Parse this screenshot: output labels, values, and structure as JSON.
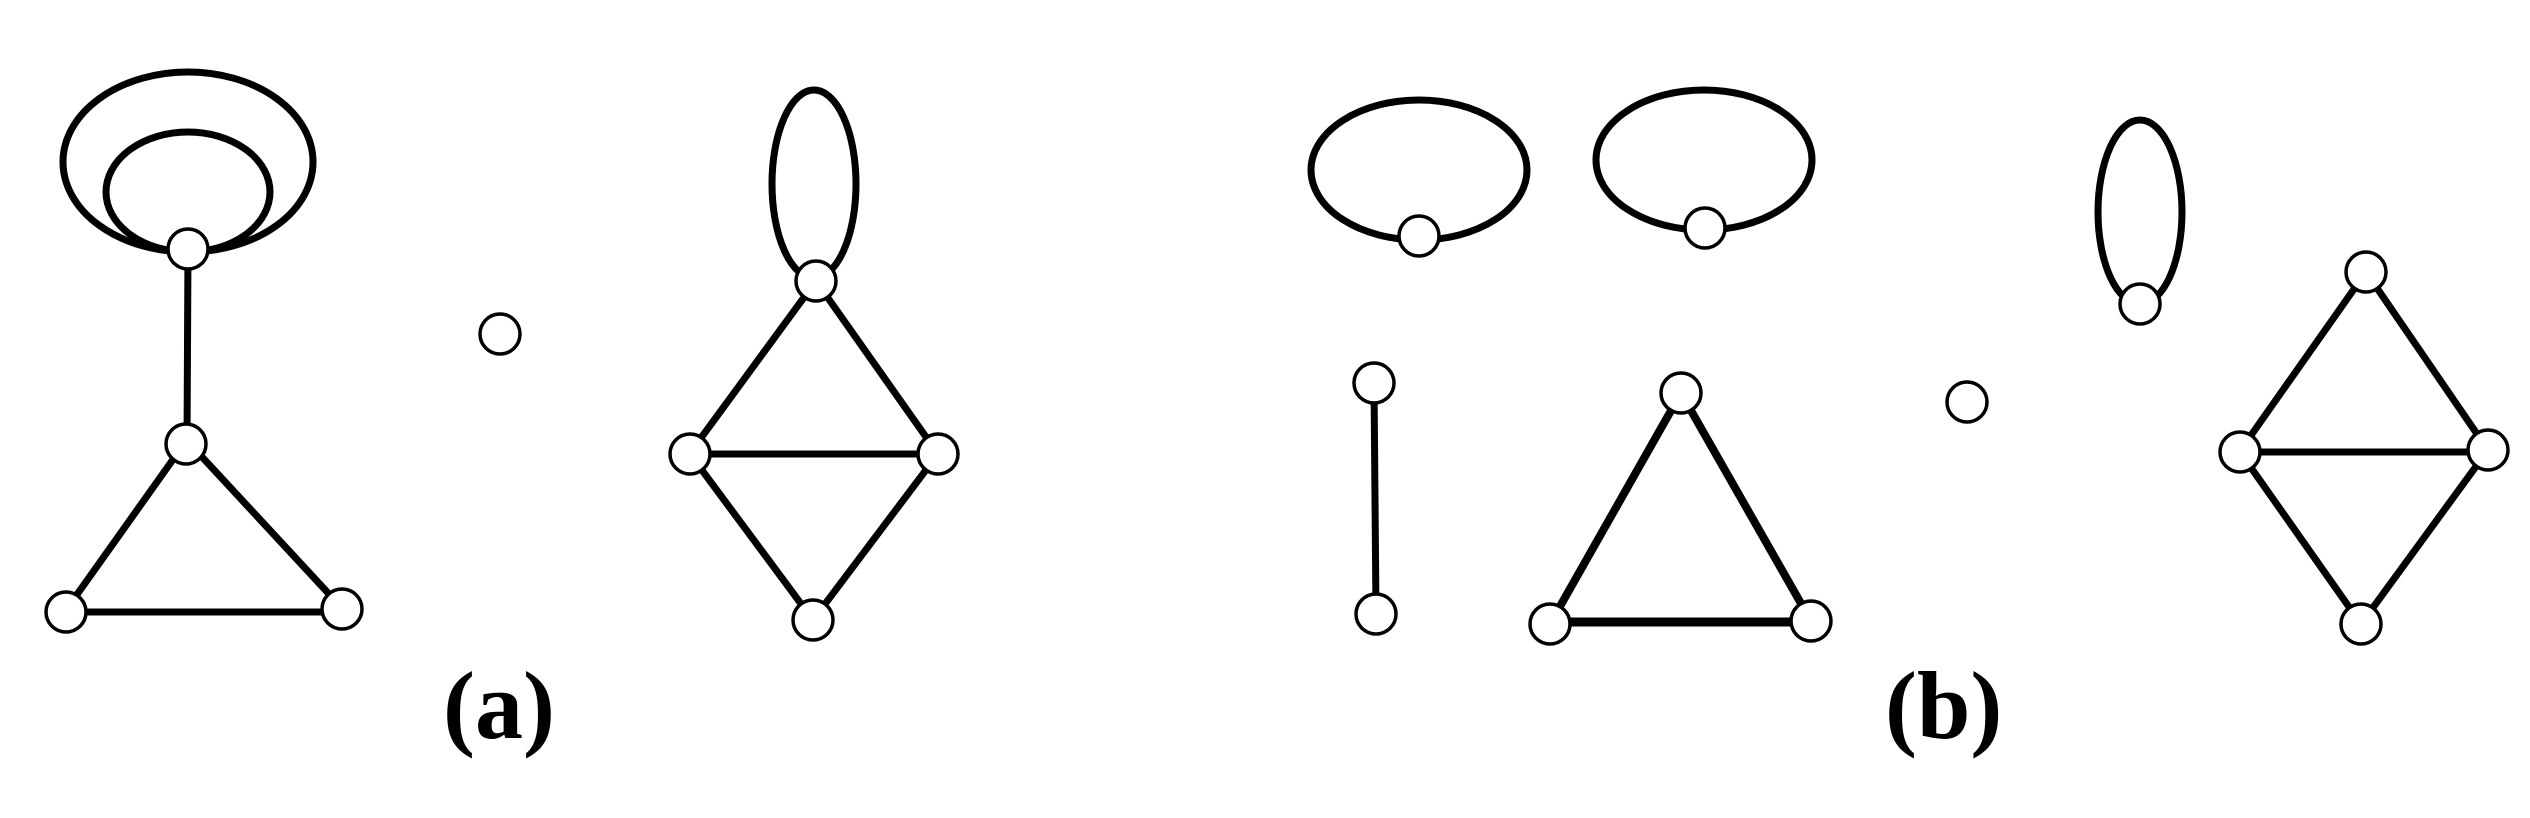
{
  "figure": {
    "panels": [
      {
        "id": "a",
        "label": "(a)",
        "components": [
          {
            "name": "triangle-with-tail-and-double-loop",
            "vertices": [
              "v1",
              "v2",
              "v3",
              "v4"
            ],
            "edges": [
              [
                "v1",
                "v2"
              ],
              [
                "v2",
                "v3"
              ],
              [
                "v2",
                "v4"
              ],
              [
                "v3",
                "v4"
              ]
            ],
            "loops": [
              {
                "vertex": "v1",
                "count": 2
              }
            ]
          },
          {
            "name": "isolated-vertex",
            "vertices": [
              "v5"
            ],
            "edges": [],
            "loops": []
          },
          {
            "name": "diamond-with-loop",
            "vertices": [
              "v6",
              "v7",
              "v8",
              "v9"
            ],
            "edges": [
              [
                "v6",
                "v7"
              ],
              [
                "v6",
                "v8"
              ],
              [
                "v7",
                "v8"
              ],
              [
                "v7",
                "v9"
              ],
              [
                "v8",
                "v9"
              ]
            ],
            "loops": [
              {
                "vertex": "v6",
                "count": 1
              }
            ]
          }
        ]
      },
      {
        "id": "b",
        "label": "(b)",
        "components": [
          {
            "name": "loop-vertex",
            "vertices": [
              "u1"
            ],
            "edges": [],
            "loops": [
              {
                "vertex": "u1",
                "count": 1
              }
            ]
          },
          {
            "name": "loop-vertex",
            "vertices": [
              "u2"
            ],
            "edges": [],
            "loops": [
              {
                "vertex": "u2",
                "count": 1
              }
            ]
          },
          {
            "name": "single-edge",
            "vertices": [
              "u3",
              "u4"
            ],
            "edges": [
              [
                "u3",
                "u4"
              ]
            ],
            "loops": []
          },
          {
            "name": "triangle",
            "vertices": [
              "u5",
              "u6",
              "u7"
            ],
            "edges": [
              [
                "u5",
                "u6"
              ],
              [
                "u5",
                "u7"
              ],
              [
                "u6",
                "u7"
              ]
            ],
            "loops": []
          },
          {
            "name": "isolated-vertex",
            "vertices": [
              "u8"
            ],
            "edges": [],
            "loops": []
          },
          {
            "name": "loop-vertex",
            "vertices": [
              "u9"
            ],
            "edges": [],
            "loops": [
              {
                "vertex": "u9",
                "count": 1
              }
            ]
          },
          {
            "name": "diamond",
            "vertices": [
              "u10",
              "u11",
              "u12",
              "u13"
            ],
            "edges": [
              [
                "u10",
                "u11"
              ],
              [
                "u10",
                "u12"
              ],
              [
                "u11",
                "u12"
              ],
              [
                "u11",
                "u13"
              ],
              [
                "u12",
                "u13"
              ]
            ],
            "loops": []
          }
        ]
      }
    ],
    "colors": {
      "stroke": "#000000",
      "vertex_fill": "#ffffff",
      "background": "#ffffff"
    }
  }
}
